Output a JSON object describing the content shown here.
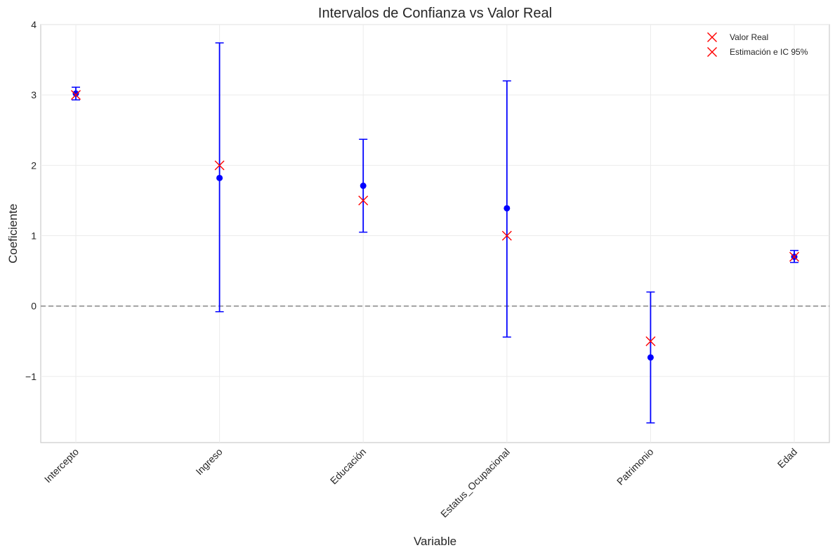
{
  "chart_data": {
    "type": "scatter",
    "title": "Intervalos de Confianza vs Valor Real",
    "xlabel": "Variable",
    "ylabel": "Coeficiente",
    "categories": [
      "Intercepto",
      "Ingreso",
      "Educación",
      "Estatus_Ocupacional",
      "Patrimonio",
      "Edad"
    ],
    "ylim": [
      -1.94,
      4.0
    ],
    "yticks": [
      -1,
      0,
      1,
      2,
      3,
      4
    ],
    "ytick_labels": [
      "−1",
      "0",
      "1",
      "2",
      "3",
      "4"
    ],
    "grid": true,
    "reference_line": {
      "y": 0,
      "style": "dashed",
      "color": "#999999"
    },
    "series": [
      {
        "name": "Estimación e IC 95%",
        "kind": "errorbar",
        "color": "#0000ff",
        "estimate": [
          3.02,
          1.82,
          1.71,
          1.39,
          -0.73,
          0.7
        ],
        "ci_low": [
          2.93,
          -0.08,
          1.05,
          -0.44,
          -1.66,
          0.62
        ],
        "ci_high": [
          3.11,
          3.74,
          2.37,
          3.2,
          0.2,
          0.79
        ]
      },
      {
        "name": "Valor Real",
        "kind": "marker",
        "marker": "x",
        "color": "#ff0000",
        "values": [
          3.0,
          2.0,
          1.5,
          1.0,
          -0.5,
          0.7
        ]
      }
    ],
    "legend": {
      "placement": "top-right",
      "entries": [
        {
          "label": "Valor Real",
          "marker": "x",
          "color": "#ff0000"
        },
        {
          "label": "Estimación e IC 95%",
          "marker": "x",
          "color": "#ff0000"
        }
      ]
    }
  }
}
